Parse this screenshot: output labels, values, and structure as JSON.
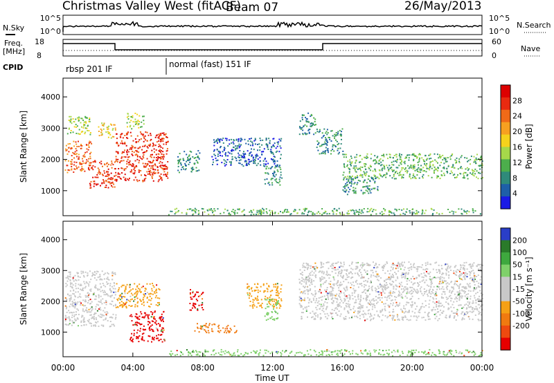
{
  "header": {
    "station": "Christmas Valley West (fitACF)",
    "beam": "Beam 07",
    "date": "26/May/2013"
  },
  "nsky_panel": {
    "left_label": "N.Sky",
    "right_label": "N.Search",
    "left_ticks": [
      "10^5",
      "10^0"
    ],
    "right_ticks": [
      "10^5",
      "10^0"
    ]
  },
  "freq_panel": {
    "left_label_line1": "Freq.",
    "left_label_line2": "[MHz]",
    "right_label": "Nave",
    "left_ticks": [
      "18",
      "8"
    ],
    "right_ticks": [
      "60",
      "0"
    ]
  },
  "cpid": {
    "label": "CPID",
    "modes": [
      {
        "name": "rbsp 201 IF",
        "start_hour": 0,
        "end_hour": 6
      },
      {
        "name": "normal (fast) 151 IF",
        "start_hour": 6,
        "end_hour": 24
      }
    ]
  },
  "x_axis": {
    "label": "Time UT",
    "tick_labels": [
      "00:00",
      "04:00",
      "08:00",
      "12:00",
      "16:00",
      "20:00",
      "00:00"
    ]
  },
  "chart_data": [
    {
      "type": "heatmap",
      "name": "power",
      "title": "",
      "xlabel": "Time UT",
      "ylabel": "Slant Range [km]",
      "xlim": [
        0,
        24
      ],
      "ylim": [
        200,
        4600
      ],
      "y_ticks": [
        "1000",
        "2000",
        "3000",
        "4000"
      ],
      "colorbar": {
        "label": "Power [dB]",
        "tick_labels": [
          "4",
          "8",
          "12",
          "16",
          "20",
          "24",
          "28"
        ],
        "colors": [
          "#1a1ae6",
          "#1e5fa8",
          "#2f8a7a",
          "#4cae4c",
          "#a6d84a",
          "#f5d21c",
          "#f7a020",
          "#f06a18",
          "#e82a10",
          "#dd0000"
        ]
      },
      "regions": [
        {
          "t": [
            0.1,
            1.6
          ],
          "r": [
            1600,
            2600
          ],
          "level": 7
        },
        {
          "t": [
            1.5,
            3.0
          ],
          "r": [
            1100,
            2000
          ],
          "level": 8
        },
        {
          "t": [
            3.0,
            6.0
          ],
          "r": [
            1300,
            2900
          ],
          "level": 8
        },
        {
          "t": [
            0.2,
            1.6
          ],
          "r": [
            2800,
            3400
          ],
          "level": 4
        },
        {
          "t": [
            2.0,
            3.0
          ],
          "r": [
            2700,
            3200
          ],
          "level": 5
        },
        {
          "t": [
            3.6,
            4.6
          ],
          "r": [
            3000,
            3500
          ],
          "level": 4
        },
        {
          "t": [
            6.5,
            7.8
          ],
          "r": [
            1600,
            2300
          ],
          "level": 2
        },
        {
          "t": [
            8.5,
            12.5
          ],
          "r": [
            1800,
            2700
          ],
          "level": 1
        },
        {
          "t": [
            11.5,
            12.5
          ],
          "r": [
            1200,
            1800
          ],
          "level": 2
        },
        {
          "t": [
            13.5,
            14.5
          ],
          "r": [
            2800,
            3500
          ],
          "level": 2
        },
        {
          "t": [
            14.5,
            16.0
          ],
          "r": [
            2200,
            3000
          ],
          "level": 2
        },
        {
          "t": [
            16.0,
            24.0
          ],
          "r": [
            1400,
            2200
          ],
          "level": 3
        },
        {
          "t": [
            16.0,
            18.0
          ],
          "r": [
            900,
            1500
          ],
          "level": 2
        },
        {
          "t": [
            6.0,
            24.0
          ],
          "r": [
            250,
            450
          ],
          "level": 3
        }
      ]
    },
    {
      "type": "heatmap",
      "name": "velocity",
      "title": "",
      "xlabel": "Time UT",
      "ylabel": "Slant Range [km]",
      "xlim": [
        0,
        24
      ],
      "ylim": [
        200,
        4600
      ],
      "y_ticks": [
        "1000",
        "2000",
        "3000",
        "4000"
      ],
      "colorbar": {
        "label": "Velocity [m s⁻¹]",
        "tick_labels": [
          "200",
          "100",
          "50",
          "15",
          "-15",
          "-50",
          "-100",
          "-200"
        ],
        "colors": [
          "#2a3ec8",
          "#2a7a2a",
          "#3ea83e",
          "#7fd06a",
          "#c8c8c8",
          "#c8c8c8",
          "#f5a015",
          "#f07a10",
          "#ee4a10",
          "#e60000"
        ]
      },
      "regions": [
        {
          "t": [
            0.1,
            3.0
          ],
          "r": [
            1200,
            3000
          ],
          "vel": "ground"
        },
        {
          "t": [
            3.0,
            5.5
          ],
          "r": [
            1800,
            2600
          ],
          "vel": "-50"
        },
        {
          "t": [
            3.8,
            5.8
          ],
          "r": [
            700,
            1700
          ],
          "vel": "-200"
        },
        {
          "t": [
            7.2,
            8.0
          ],
          "r": [
            1700,
            2400
          ],
          "vel": "-200"
        },
        {
          "t": [
            7.5,
            10.0
          ],
          "r": [
            1000,
            1300
          ],
          "vel": "-100"
        },
        {
          "t": [
            10.5,
            12.5
          ],
          "r": [
            1800,
            2600
          ],
          "vel": "-50"
        },
        {
          "t": [
            11.5,
            12.3
          ],
          "r": [
            1400,
            2100
          ],
          "vel": "50"
        },
        {
          "t": [
            13.5,
            24.0
          ],
          "r": [
            1400,
            3300
          ],
          "vel": "ground"
        },
        {
          "t": [
            6.0,
            24.0
          ],
          "r": [
            250,
            450
          ],
          "vel": "50"
        }
      ]
    }
  ]
}
